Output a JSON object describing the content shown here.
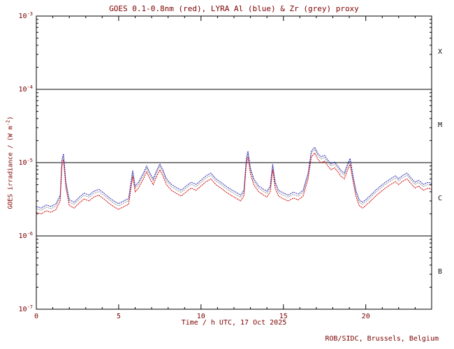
{
  "page": {
    "background": "#ffffff"
  },
  "chart_data": {
    "type": "line",
    "title": "GOES 0.1-0.8nm (red), LYRA Al (blue) & Zr (grey) proxy",
    "xlabel": "Time / h UTC, 17 Oct 2025",
    "ylabel_parts": {
      "pre": "GOES irradiance / (W m",
      "sup": "-2",
      "post": ")"
    },
    "xlim": [
      0,
      24
    ],
    "ylim": [
      1e-07,
      0.001
    ],
    "yscale": "log",
    "grid": false,
    "thresholds": [
      0.0001,
      1e-05,
      1e-06
    ],
    "class_bands": [
      {
        "label": "X",
        "range": "above 1e-4"
      },
      {
        "label": "M",
        "range": "1e-5 to 1e-4"
      },
      {
        "label": "C",
        "range": "1e-6 to 1e-5"
      },
      {
        "label": "B",
        "range": "1e-7 to 1e-6"
      }
    ],
    "yticks": [
      {
        "value": 0.001,
        "base": "10",
        "exp": "-3"
      },
      {
        "value": 0.0001,
        "base": "10",
        "exp": "-4"
      },
      {
        "value": 1e-05,
        "base": "10",
        "exp": "-5"
      },
      {
        "value": 1e-06,
        "base": "10",
        "exp": "-6"
      },
      {
        "value": 1e-07,
        "base": "10",
        "exp": "-7"
      }
    ],
    "xticks": {
      "major": [
        0,
        5,
        10,
        15,
        20
      ],
      "labels": [
        "0",
        "5",
        "10",
        "15",
        "20"
      ],
      "minor_step": 1
    },
    "colors": {
      "frame": "#000000",
      "text": "#7d0000"
    },
    "values_scale": 1e-06,
    "x": [
      0,
      0.3,
      0.6,
      0.9,
      1.2,
      1.45,
      1.55,
      1.65,
      1.8,
      2.0,
      2.3,
      2.6,
      2.9,
      3.2,
      3.5,
      3.8,
      4.1,
      4.4,
      4.7,
      5.0,
      5.3,
      5.6,
      5.85,
      6.0,
      6.2,
      6.5,
      6.7,
      6.9,
      7.1,
      7.3,
      7.5,
      7.7,
      7.9,
      8.2,
      8.5,
      8.8,
      9.1,
      9.4,
      9.7,
      10.0,
      10.3,
      10.6,
      10.9,
      11.2,
      11.5,
      11.8,
      12.1,
      12.4,
      12.6,
      12.75,
      12.85,
      13.0,
      13.2,
      13.5,
      13.8,
      14.0,
      14.2,
      14.35,
      14.5,
      14.7,
      15.0,
      15.3,
      15.6,
      15.9,
      16.2,
      16.5,
      16.7,
      16.9,
      17.1,
      17.3,
      17.5,
      17.7,
      17.9,
      18.1,
      18.3,
      18.5,
      18.7,
      18.9,
      19.05,
      19.2,
      19.4,
      19.6,
      19.8,
      20.0,
      20.3,
      20.6,
      20.9,
      21.2,
      21.5,
      21.8,
      22.0,
      22.2,
      22.5,
      22.8,
      23.0,
      23.2,
      23.5,
      23.8,
      24.0
    ],
    "base_values": [
      2.1,
      2.0,
      2.2,
      2.1,
      2.3,
      3.0,
      9.0,
      11.0,
      4.5,
      2.6,
      2.4,
      2.8,
      3.2,
      3.0,
      3.4,
      3.6,
      3.2,
      2.8,
      2.5,
      2.3,
      2.5,
      2.7,
      6.5,
      4.0,
      4.5,
      6.0,
      7.5,
      6.0,
      5.0,
      6.5,
      8.0,
      6.5,
      5.0,
      4.2,
      3.8,
      3.5,
      4.0,
      4.5,
      4.2,
      4.8,
      5.5,
      6.0,
      5.0,
      4.5,
      4.0,
      3.6,
      3.3,
      3.0,
      3.5,
      9.5,
      12.0,
      7.0,
      5.0,
      4.0,
      3.6,
      3.4,
      4.0,
      8.0,
      4.5,
      3.5,
      3.2,
      3.0,
      3.3,
      3.1,
      3.5,
      6.0,
      12.0,
      13.5,
      11.0,
      10.0,
      10.5,
      9.0,
      8.0,
      8.5,
      7.5,
      6.5,
      6.0,
      8.0,
      9.5,
      6.0,
      3.5,
      2.6,
      2.4,
      2.6,
      3.0,
      3.5,
      4.0,
      4.5,
      5.0,
      5.5,
      5.0,
      5.5,
      6.0,
      5.0,
      4.5,
      4.8,
      4.2,
      4.5,
      4.3
    ],
    "series": [
      {
        "id": "zr",
        "name": "LYRA Zr proxy",
        "color": "#9a9a9a",
        "scale": 1.12
      },
      {
        "id": "al",
        "name": "LYRA Al proxy",
        "color": "#2626bb",
        "scale": 1.2
      },
      {
        "id": "goes",
        "name": "GOES 0.1-0.8nm",
        "color": "#d40000",
        "scale": 1.0
      }
    ]
  },
  "footer": {
    "credit": "ROB/SIDC, Brussels, Belgium"
  }
}
